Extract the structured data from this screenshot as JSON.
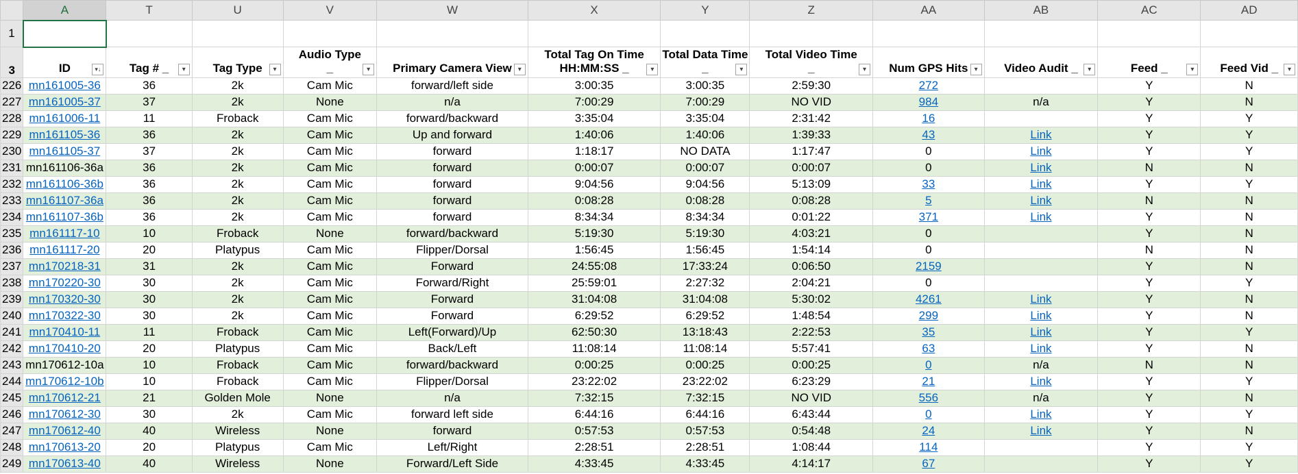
{
  "columns": [
    "A",
    "T",
    "U",
    "V",
    "W",
    "X",
    "Y",
    "Z",
    "AA",
    "AB",
    "AC",
    "AD"
  ],
  "row_labels": {
    "row1": "1",
    "row3": "3"
  },
  "headers": [
    {
      "line1": "",
      "line2": "ID",
      "filter": "sort"
    },
    {
      "line1": "",
      "line2": "Tag #  _",
      "filter": "down"
    },
    {
      "line1": "",
      "line2": "Tag Type",
      "filter": "down"
    },
    {
      "line1": "Audio Type",
      "line2": "_",
      "filter": "down"
    },
    {
      "line1": "",
      "line2": "Primary Camera View",
      "filter": "down"
    },
    {
      "line1": "Total Tag On Time",
      "line2": "HH:MM:SS _",
      "filter": "down"
    },
    {
      "line1": "Total Data Time",
      "line2": "_",
      "filter": "down"
    },
    {
      "line1": "Total Video Time",
      "line2": "_",
      "filter": "down"
    },
    {
      "line1": "",
      "line2": "Num GPS Hits",
      "filter": "down"
    },
    {
      "line1": "",
      "line2": "Video Audit  _",
      "filter": "down"
    },
    {
      "line1": "",
      "line2": "Feed _",
      "filter": "down"
    },
    {
      "line1": "",
      "line2": "Feed Vid  _",
      "filter": "down"
    }
  ],
  "rows": [
    {
      "n": "226",
      "id": "mn161005-36",
      "id_link": true,
      "tag": "36",
      "type": "2k",
      "audio": "Cam Mic",
      "view": "forward/left side",
      "on": "3:00:35",
      "data": "3:00:35",
      "video": "2:59:30",
      "gps": "272",
      "gps_link": true,
      "audit": "",
      "feed": "Y",
      "feedvid": "N"
    },
    {
      "n": "227",
      "id": "mn161005-37",
      "id_link": true,
      "tag": "37",
      "type": "2k",
      "audio": "None",
      "view": "n/a",
      "on": "7:00:29",
      "data": "7:00:29",
      "video": "NO VID",
      "gps": "984",
      "gps_link": true,
      "audit": "n/a",
      "feed": "Y",
      "feedvid": "N"
    },
    {
      "n": "228",
      "id": "mn161006-11",
      "id_link": true,
      "tag": "11",
      "type": "Froback",
      "audio": "Cam Mic",
      "view": "forward/backward",
      "on": "3:35:04",
      "data": "3:35:04",
      "video": "2:31:42",
      "gps": "16",
      "gps_link": true,
      "audit": "",
      "feed": "Y",
      "feedvid": "Y"
    },
    {
      "n": "229",
      "id": "mn161105-36",
      "id_link": true,
      "tag": "36",
      "type": "2k",
      "audio": "Cam Mic",
      "view": "Up and forward",
      "on": "1:40:06",
      "data": "1:40:06",
      "video": "1:39:33",
      "gps": "43",
      "gps_link": true,
      "audit": "Link",
      "feed": "Y",
      "feedvid": "Y"
    },
    {
      "n": "230",
      "id": "mn161105-37",
      "id_link": true,
      "tag": "37",
      "type": "2k",
      "audio": "Cam Mic",
      "view": "forward",
      "on": "1:18:17",
      "data": "NO DATA",
      "video": "1:17:47",
      "gps": "0",
      "gps_link": false,
      "audit": "Link",
      "feed": "Y",
      "feedvid": "Y"
    },
    {
      "n": "231",
      "id": "mn161106-36a",
      "id_link": false,
      "tag": "36",
      "type": "2k",
      "audio": "Cam Mic",
      "view": "forward",
      "on": "0:00:07",
      "data": "0:00:07",
      "video": "0:00:07",
      "gps": "0",
      "gps_link": false,
      "audit": "Link",
      "feed": "N",
      "feedvid": "N"
    },
    {
      "n": "232",
      "id": "mn161106-36b",
      "id_link": true,
      "tag": "36",
      "type": "2k",
      "audio": "Cam Mic",
      "view": "forward",
      "on": "9:04:56",
      "data": "9:04:56",
      "video": "5:13:09",
      "gps": "33",
      "gps_link": true,
      "audit": "Link",
      "feed": "Y",
      "feedvid": "Y"
    },
    {
      "n": "233",
      "id": "mn161107-36a",
      "id_link": true,
      "tag": "36",
      "type": "2k",
      "audio": "Cam Mic",
      "view": "forward",
      "on": "0:08:28",
      "data": "0:08:28",
      "video": "0:08:28",
      "gps": "5",
      "gps_link": true,
      "audit": "Link",
      "feed": "N",
      "feedvid": "N"
    },
    {
      "n": "234",
      "id": "mn161107-36b",
      "id_link": true,
      "tag": "36",
      "type": "2k",
      "audio": "Cam Mic",
      "view": "forward",
      "on": "8:34:34",
      "data": "8:34:34",
      "video": "0:01:22",
      "gps": "371",
      "gps_link": true,
      "audit": "Link",
      "feed": "Y",
      "feedvid": "N"
    },
    {
      "n": "235",
      "id": "mn161117-10",
      "id_link": true,
      "tag": "10",
      "type": "Froback",
      "audio": "None",
      "view": "forward/backward",
      "on": "5:19:30",
      "data": "5:19:30",
      "video": "4:03:21",
      "gps": "0",
      "gps_link": false,
      "audit": "",
      "feed": "Y",
      "feedvid": "N"
    },
    {
      "n": "236",
      "id": "mn161117-20",
      "id_link": true,
      "tag": "20",
      "type": "Platypus",
      "audio": "Cam Mic",
      "view": "Flipper/Dorsal",
      "on": "1:56:45",
      "data": "1:56:45",
      "video": "1:54:14",
      "gps": "0",
      "gps_link": false,
      "audit": "",
      "feed": "N",
      "feedvid": "N"
    },
    {
      "n": "237",
      "id": "mn170218-31",
      "id_link": true,
      "tag": "31",
      "type": "2k",
      "audio": "Cam Mic",
      "view": "Forward",
      "on": "24:55:08",
      "data": "17:33:24",
      "video": "0:06:50",
      "gps": "2159",
      "gps_link": true,
      "audit": "",
      "feed": "Y",
      "feedvid": "N"
    },
    {
      "n": "238",
      "id": "mn170220-30",
      "id_link": true,
      "tag": "30",
      "type": "2k",
      "audio": "Cam Mic",
      "view": "Forward/Right",
      "on": "25:59:01",
      "data": "2:27:32",
      "video": "2:04:21",
      "gps": "0",
      "gps_link": false,
      "audit": "",
      "feed": "Y",
      "feedvid": "Y"
    },
    {
      "n": "239",
      "id": "mn170320-30",
      "id_link": true,
      "tag": "30",
      "type": "2k",
      "audio": "Cam Mic",
      "view": "Forward",
      "on": "31:04:08",
      "data": "31:04:08",
      "video": "5:30:02",
      "gps": "4261",
      "gps_link": true,
      "audit": "Link",
      "feed": "Y",
      "feedvid": "N"
    },
    {
      "n": "240",
      "id": "mn170322-30",
      "id_link": true,
      "tag": "30",
      "type": "2k",
      "audio": "Cam Mic",
      "view": "Forward",
      "on": "6:29:52",
      "data": "6:29:52",
      "video": "1:48:54",
      "gps": "299",
      "gps_link": true,
      "audit": "Link",
      "feed": "Y",
      "feedvid": "N"
    },
    {
      "n": "241",
      "id": "mn170410-11",
      "id_link": true,
      "tag": "11",
      "type": "Froback",
      "audio": "Cam Mic",
      "view": "Left(Forward)/Up",
      "on": "62:50:30",
      "data": "13:18:43",
      "video": "2:22:53",
      "gps": "35",
      "gps_link": true,
      "audit": "Link",
      "feed": "Y",
      "feedvid": "Y"
    },
    {
      "n": "242",
      "id": "mn170410-20",
      "id_link": true,
      "tag": "20",
      "type": "Platypus",
      "audio": "Cam Mic",
      "view": "Back/Left",
      "on": "11:08:14",
      "data": "11:08:14",
      "video": "5:57:41",
      "gps": "63",
      "gps_link": true,
      "audit": "Link",
      "feed": "Y",
      "feedvid": "N"
    },
    {
      "n": "243",
      "id": "mn170612-10a",
      "id_link": false,
      "tag": "10",
      "type": "Froback",
      "audio": "Cam Mic",
      "view": "forward/backward",
      "on": "0:00:25",
      "data": "0:00:25",
      "video": "0:00:25",
      "gps": "0",
      "gps_link": true,
      "audit": "n/a",
      "feed": "N",
      "feedvid": "N"
    },
    {
      "n": "244",
      "id": "mn170612-10b",
      "id_link": true,
      "tag": "10",
      "type": "Froback",
      "audio": "Cam Mic",
      "view": "Flipper/Dorsal",
      "on": "23:22:02",
      "data": "23:22:02",
      "video": "6:23:29",
      "gps": "21",
      "gps_link": true,
      "audit": "Link",
      "feed": "Y",
      "feedvid": "Y"
    },
    {
      "n": "245",
      "id": "mn170612-21",
      "id_link": true,
      "tag": "21",
      "type": "Golden Mole",
      "audio": "None",
      "view": "n/a",
      "on": "7:32:15",
      "data": "7:32:15",
      "video": "NO VID",
      "gps": "556",
      "gps_link": true,
      "audit": "n/a",
      "feed": "Y",
      "feedvid": "N"
    },
    {
      "n": "246",
      "id": "mn170612-30",
      "id_link": true,
      "tag": "30",
      "type": "2k",
      "audio": "Cam Mic",
      "view": "forward left side",
      "on": "6:44:16",
      "data": "6:44:16",
      "video": "6:43:44",
      "gps": "0",
      "gps_link": true,
      "audit": "Link",
      "feed": "Y",
      "feedvid": "Y"
    },
    {
      "n": "247",
      "id": "mn170612-40",
      "id_link": true,
      "tag": "40",
      "type": "Wireless",
      "audio": "None",
      "view": "forward",
      "on": "0:57:53",
      "data": "0:57:53",
      "video": "0:54:48",
      "gps": "24",
      "gps_link": true,
      "audit": "Link",
      "feed": "Y",
      "feedvid": "N"
    },
    {
      "n": "248",
      "id": "mn170613-20",
      "id_link": true,
      "tag": "20",
      "type": "Platypus",
      "audio": "Cam Mic",
      "view": "Left/Right",
      "on": "2:28:51",
      "data": "2:28:51",
      "video": "1:08:44",
      "gps": "114",
      "gps_link": true,
      "audit": "",
      "feed": "Y",
      "feedvid": "Y"
    },
    {
      "n": "249",
      "id": "mn170613-40",
      "id_link": true,
      "tag": "40",
      "type": "Wireless",
      "audio": "None",
      "view": "Forward/Left Side",
      "on": "4:33:45",
      "data": "4:33:45",
      "video": "4:14:17",
      "gps": "67",
      "gps_link": true,
      "audit": "",
      "feed": "Y",
      "feedvid": "Y"
    }
  ],
  "colors": {
    "band": "#e2efda",
    "link": "#0563c1",
    "selection": "#217346",
    "header_bg": "#e6e6e6"
  }
}
